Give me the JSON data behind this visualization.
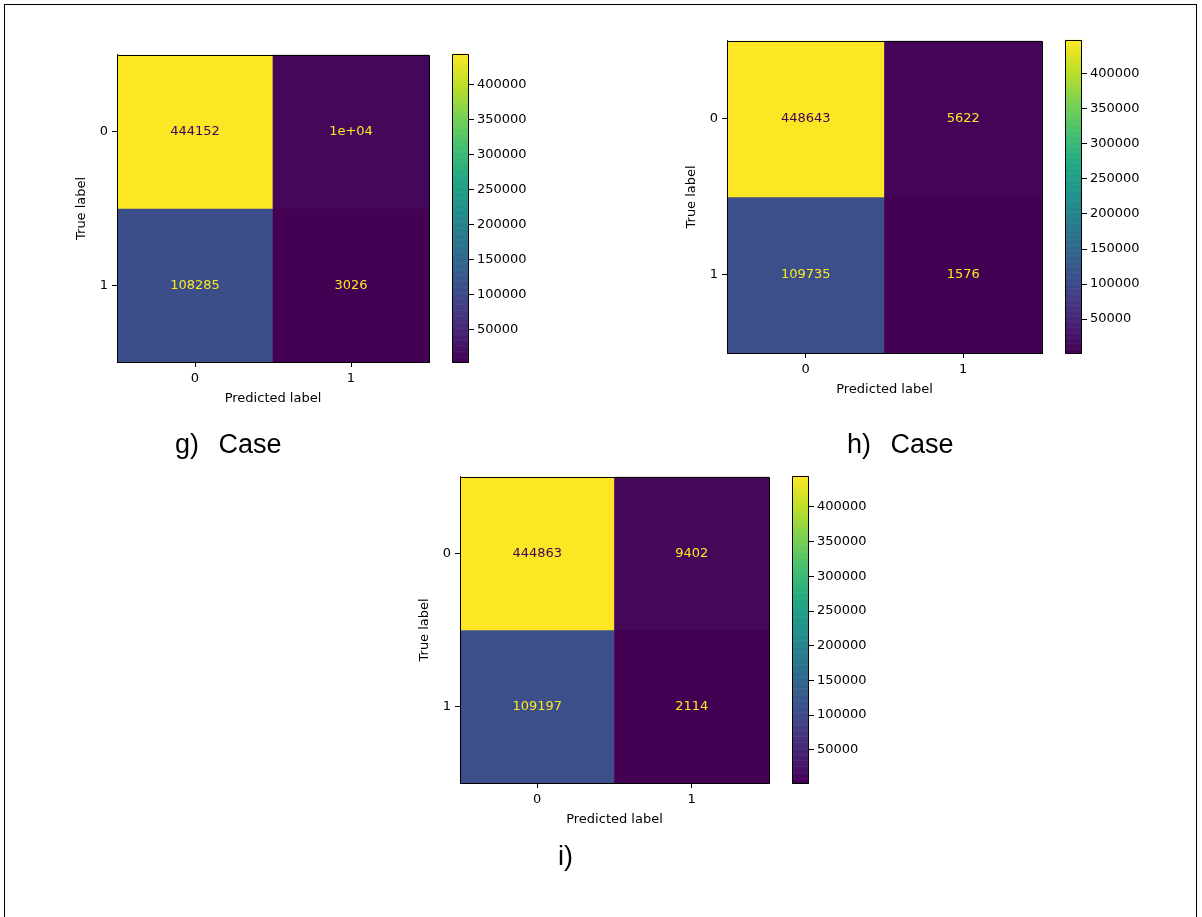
{
  "chart_data": [
    {
      "type": "heatmap",
      "categories": [
        "0",
        "1"
      ],
      "y_categories": [
        "0",
        "1"
      ],
      "cells": [
        [
          444152,
          10000
        ],
        [
          108285,
          3026
        ]
      ],
      "cell_labels": [
        [
          "444152",
          "1e+04"
        ],
        [
          "108285",
          "3026"
        ]
      ],
      "xlabel": "Predicted label",
      "ylabel": "True label",
      "clim": [
        3026,
        444152
      ],
      "cticks": [
        50000,
        100000,
        150000,
        200000,
        250000,
        300000,
        350000,
        400000
      ],
      "annotations": [
        "g) Case"
      ]
    },
    {
      "type": "heatmap",
      "categories": [
        "0",
        "1"
      ],
      "y_categories": [
        "0",
        "1"
      ],
      "cells": [
        [
          448643,
          5622
        ],
        [
          109735,
          1576
        ]
      ],
      "data_labels": true,
      "xlabel": "Predicted label",
      "ylabel": "True label",
      "clim": [
        1576,
        448643
      ],
      "cticks": [
        50000,
        100000,
        150000,
        200000,
        250000,
        300000,
        350000,
        400000
      ],
      "annotations": [
        "h) Case"
      ]
    },
    {
      "type": "heatmap",
      "categories": [
        "0",
        "1"
      ],
      "y_categories": [
        "0",
        "1"
      ],
      "cells": [
        [
          444863,
          9402
        ],
        [
          109197,
          2114
        ]
      ],
      "data_labels": true,
      "xlabel": "Predicted label",
      "ylabel": "True label",
      "clim": [
        2114,
        444863
      ],
      "cticks": [
        50000,
        100000,
        150000,
        200000,
        250000,
        300000,
        350000,
        400000
      ],
      "annotations": [
        "i)"
      ]
    }
  ]
}
